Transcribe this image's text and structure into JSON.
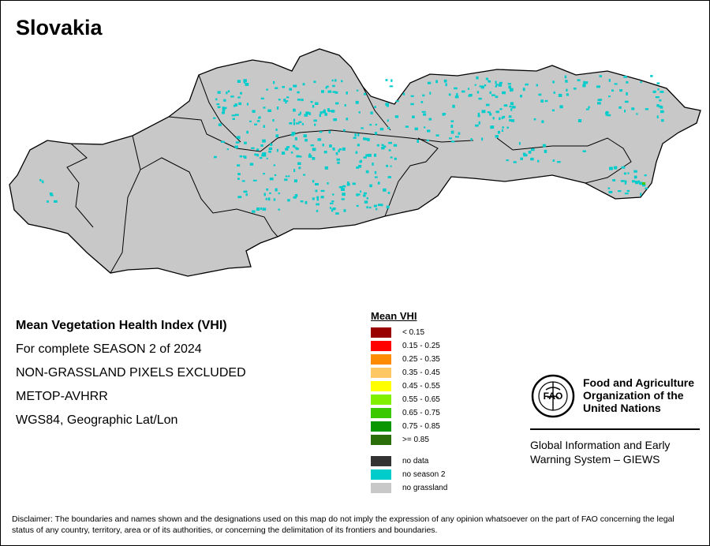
{
  "title": "Slovakia",
  "info": [
    "Mean Vegetation Health Index (VHI)",
    "For complete SEASON 2 of 2024",
    "NON-GRASSLAND PIXELS EXCLUDED",
    "METOP-AVHRR",
    "WGS84, Geographic Lat/Lon"
  ],
  "legend": {
    "title": "Mean VHI",
    "classes": [
      {
        "label": "< 0.15",
        "color": "#990000"
      },
      {
        "label": "0.15 - 0.25",
        "color": "#ff0000"
      },
      {
        "label": "0.25 - 0.35",
        "color": "#ff8c00"
      },
      {
        "label": "0.35 - 0.45",
        "color": "#ffc864"
      },
      {
        "label": "0.45 - 0.55",
        "color": "#ffff00"
      },
      {
        "label": "0.55 - 0.65",
        "color": "#80f000"
      },
      {
        "label": "0.65 - 0.75",
        "color": "#3cc800"
      },
      {
        "label": "0.75 - 0.85",
        "color": "#0a9600"
      },
      {
        "label": ">= 0.85",
        "color": "#2a6e0a"
      }
    ],
    "other": [
      {
        "label": "no data",
        "color": "#333333"
      },
      {
        "label": "no season 2",
        "color": "#00cccc"
      },
      {
        "label": "no grassland",
        "color": "#c8c8c8"
      }
    ]
  },
  "map_colors": {
    "country_fill": "#c8c8c8",
    "no_season": "#00cccc",
    "border": "#000000"
  },
  "fao": {
    "logo_text": "FAO",
    "name_lines": [
      "Food and Agriculture",
      "Organization of the",
      "United Nations"
    ],
    "giews_lines": [
      "Global Information and Early",
      "Warning System – GIEWS"
    ]
  },
  "disclaimer": "Disclaimer: The boundaries and names shown and the designations used on this map do not imply the expression of any opinion whatsoever on the part of FAO concerning the legal status of any country, territory, area or of its authorities, or concerning the delimitation of its frontiers and boundaries."
}
